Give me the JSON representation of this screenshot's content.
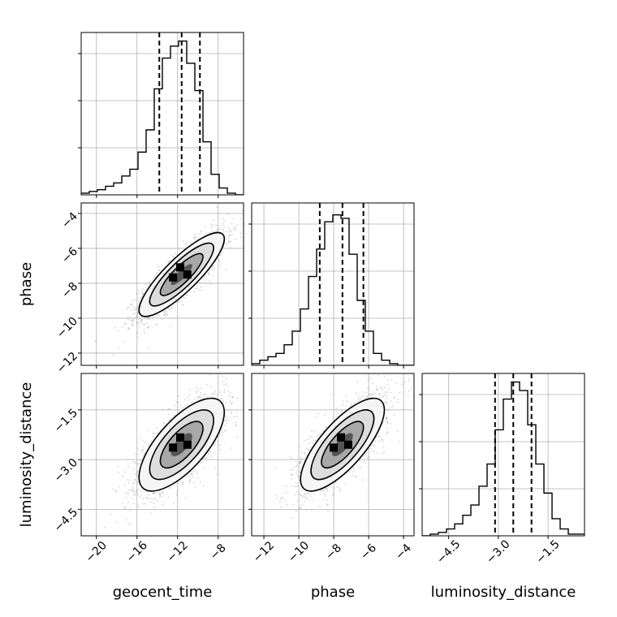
{
  "chart_data": {
    "type": "corner",
    "parameters": [
      "geocent_time",
      "phase",
      "luminosity_distance"
    ],
    "grid": true,
    "colors": {
      "line": "#000000",
      "grid": "#b0b0b0",
      "points": "#9a9a9a"
    },
    "ranges": {
      "geocent_time": [
        -21.5,
        -5.5
      ],
      "phase": [
        -12.7,
        -3.4
      ],
      "luminosity_distance": [
        -5.3,
        -0.4
      ]
    },
    "ticks": {
      "geocent_time": [
        -20,
        -16,
        -12,
        -8
      ],
      "phase": [
        -12,
        -10,
        -8,
        -6,
        -4
      ],
      "luminosity_distance": [
        -4.5,
        -3.0,
        -1.5
      ]
    },
    "tick_labels": {
      "geocent_time": [
        "−20",
        "−16",
        "−12",
        "−8"
      ],
      "phase": [
        "−12",
        "−10",
        "−8",
        "−6",
        "−4"
      ],
      "luminosity_distance": [
        "−4.5",
        "−3.0",
        "−1.5"
      ]
    },
    "quantiles": {
      "geocent_time": [
        -13.8,
        -11.6,
        -9.8
      ],
      "phase": [
        -8.8,
        -7.5,
        -6.3
      ],
      "luminosity_distance": [
        -3.1,
        -2.55,
        -2.0
      ]
    },
    "histograms": {
      "geocent_time": {
        "edges_start": -21.5,
        "bin_width": 0.8,
        "counts": [
          0.01,
          0.02,
          0.03,
          0.05,
          0.07,
          0.11,
          0.15,
          0.25,
          0.38,
          0.62,
          0.8,
          0.87,
          0.9,
          0.77,
          0.61,
          0.31,
          0.12,
          0.04,
          0.01,
          0.0
        ]
      },
      "phase": {
        "edges_start": -12.7,
        "bin_width": 0.465,
        "counts": [
          0.01,
          0.03,
          0.05,
          0.07,
          0.12,
          0.2,
          0.33,
          0.52,
          0.68,
          0.84,
          0.88,
          0.86,
          0.65,
          0.38,
          0.2,
          0.07,
          0.03,
          0.01,
          0.0,
          0.0
        ]
      },
      "luminosity_distance": {
        "edges_start": -5.3,
        "bin_width": 0.245,
        "counts": [
          0.0,
          0.01,
          0.02,
          0.04,
          0.07,
          0.12,
          0.18,
          0.29,
          0.42,
          0.62,
          0.8,
          0.9,
          0.85,
          0.65,
          0.42,
          0.25,
          0.1,
          0.04,
          0.01,
          0.01
        ]
      }
    },
    "correlations": {
      "phase|geocent_time": 0.85,
      "luminosity_distance|geocent_time": 0.7,
      "luminosity_distance|phase": 0.75
    },
    "means": {
      "geocent_time": -11.6,
      "phase": -7.5,
      "luminosity_distance": -2.55
    },
    "stds": {
      "geocent_time": 2.1,
      "phase": 1.2,
      "luminosity_distance": 0.7
    }
  }
}
